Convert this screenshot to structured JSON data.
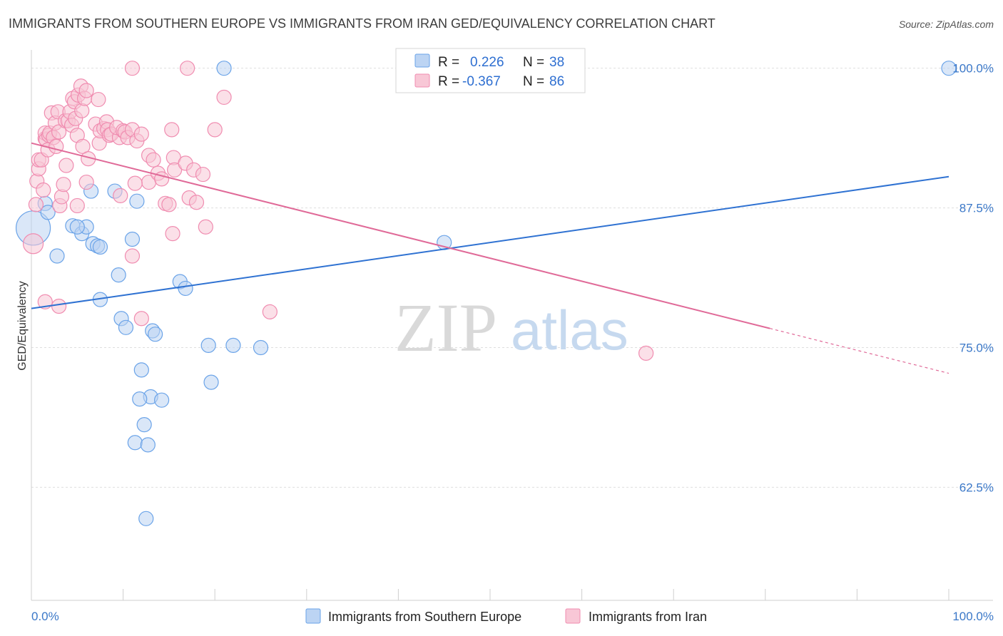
{
  "chart_data": {
    "type": "scatter",
    "title": "IMMIGRANTS FROM SOUTHERN EUROPE VS IMMIGRANTS FROM IRAN GED/EQUIVALENCY CORRELATION CHART",
    "source": "Source: ZipAtlas.com",
    "xlabel": "",
    "ylabel": "GED/Equivalency",
    "xlim": [
      0,
      100
    ],
    "ylim": [
      52,
      101
    ],
    "x_tick_labels": [
      {
        "value": 0,
        "label": "0.0%"
      },
      {
        "value": 100,
        "label": "100.0%"
      }
    ],
    "y_ticks": [
      {
        "value": 100,
        "label": "100.0%"
      },
      {
        "value": 87.5,
        "label": "87.5%"
      },
      {
        "value": 75,
        "label": "75.0%"
      },
      {
        "value": 62.5,
        "label": "62.5%"
      }
    ],
    "watermark": {
      "zip": "ZIP",
      "atlas": "atlas"
    },
    "stats_box": {
      "r_label": "R =",
      "n_label": "N =",
      "rows": [
        {
          "series": "Immigrants from Southern Europe",
          "r": "0.226",
          "n": "38"
        },
        {
          "series": "Immigrants from Iran",
          "r": "-0.367",
          "n": "86"
        }
      ]
    },
    "series": [
      {
        "name": "Immigrants from Southern Europe",
        "color": "#6aa3e8",
        "fill": "#bcd4f3",
        "trend": {
          "x0": 0,
          "y0": 78.5,
          "x1": 100,
          "y1": 90.3,
          "solid_until": 100
        },
        "points": [
          [
            0.2,
            85.7,
            24
          ],
          [
            1.5,
            87.9,
            10
          ],
          [
            1.8,
            87.1,
            10
          ],
          [
            4.5,
            85.9,
            10
          ],
          [
            5.5,
            85.2,
            10
          ],
          [
            6.0,
            85.8,
            10
          ],
          [
            2.8,
            83.2,
            10
          ],
          [
            5.0,
            85.8,
            10
          ],
          [
            6.7,
            84.3,
            10
          ],
          [
            7.2,
            84.1,
            10
          ],
          [
            7.5,
            84.0,
            10
          ],
          [
            6.5,
            89.0,
            10
          ],
          [
            9.1,
            89.0,
            10
          ],
          [
            11.5,
            88.1,
            10
          ],
          [
            11.0,
            84.7,
            10
          ],
          [
            7.5,
            79.3,
            10
          ],
          [
            9.5,
            81.5,
            10
          ],
          [
            9.8,
            77.6,
            10
          ],
          [
            10.3,
            76.8,
            10
          ],
          [
            13.2,
            76.5,
            10
          ],
          [
            13.5,
            76.2,
            10
          ],
          [
            16.2,
            80.9,
            10
          ],
          [
            16.8,
            80.3,
            10
          ],
          [
            19.3,
            75.2,
            10
          ],
          [
            22.0,
            75.2,
            10
          ],
          [
            25.0,
            75.0,
            10
          ],
          [
            12.0,
            73.0,
            10
          ],
          [
            19.6,
            71.9,
            10
          ],
          [
            13.0,
            70.6,
            10
          ],
          [
            11.8,
            70.4,
            10
          ],
          [
            14.2,
            70.3,
            10
          ],
          [
            12.3,
            68.1,
            10
          ],
          [
            11.3,
            66.5,
            10
          ],
          [
            12.7,
            66.3,
            10
          ],
          [
            12.5,
            59.7,
            10
          ],
          [
            21.0,
            100.0,
            10
          ],
          [
            45.0,
            84.4,
            10
          ],
          [
            100.0,
            100.0,
            10
          ]
        ]
      },
      {
        "name": "Immigrants from Iran",
        "color": "#f08cb0",
        "fill": "#f8c7d6",
        "trend": {
          "x0": 0,
          "y0": 93.3,
          "x1": 100,
          "y1": 72.7,
          "solid_until": 80.5
        },
        "points": [
          [
            0.2,
            84.3,
            14
          ],
          [
            0.5,
            87.8,
            10
          ],
          [
            0.6,
            89.9,
            10
          ],
          [
            0.8,
            91.0,
            10
          ],
          [
            0.8,
            91.8,
            10
          ],
          [
            1.1,
            91.8,
            10
          ],
          [
            1.3,
            89.1,
            10
          ],
          [
            1.5,
            93.7,
            10
          ],
          [
            1.5,
            94.2,
            10
          ],
          [
            1.6,
            93.6,
            10
          ],
          [
            1.8,
            92.7,
            10
          ],
          [
            1.9,
            94.0,
            10
          ],
          [
            2.0,
            94.2,
            10
          ],
          [
            2.2,
            96.0,
            10
          ],
          [
            2.4,
            93.8,
            10
          ],
          [
            2.6,
            95.1,
            10
          ],
          [
            2.7,
            93.0,
            10
          ],
          [
            2.9,
            96.1,
            10
          ],
          [
            3.0,
            94.3,
            10
          ],
          [
            3.1,
            87.7,
            10
          ],
          [
            3.3,
            88.5,
            10
          ],
          [
            3.5,
            89.6,
            10
          ],
          [
            3.7,
            95.3,
            10
          ],
          [
            3.8,
            91.3,
            10
          ],
          [
            4.0,
            95.3,
            10
          ],
          [
            4.2,
            96.1,
            10
          ],
          [
            4.4,
            94.9,
            10
          ],
          [
            4.5,
            97.3,
            10
          ],
          [
            4.7,
            97.0,
            10
          ],
          [
            4.8,
            95.5,
            10
          ],
          [
            5.0,
            94.0,
            10
          ],
          [
            5.1,
            97.6,
            10
          ],
          [
            5.4,
            98.4,
            10
          ],
          [
            5.5,
            96.2,
            10
          ],
          [
            5.6,
            93.0,
            10
          ],
          [
            5.8,
            97.3,
            10
          ],
          [
            6.0,
            98.0,
            10
          ],
          [
            6.2,
            91.9,
            10
          ],
          [
            6.0,
            89.8,
            10
          ],
          [
            7.0,
            95.0,
            10
          ],
          [
            7.3,
            97.2,
            10
          ],
          [
            7.4,
            93.3,
            10
          ],
          [
            7.5,
            94.4,
            10
          ],
          [
            7.9,
            94.6,
            10
          ],
          [
            8.2,
            95.2,
            10
          ],
          [
            8.3,
            94.5,
            10
          ],
          [
            8.5,
            94.0,
            10
          ],
          [
            8.7,
            94.1,
            10
          ],
          [
            9.6,
            93.8,
            10
          ],
          [
            9.3,
            94.7,
            10
          ],
          [
            9.7,
            88.6,
            10
          ],
          [
            10.0,
            94.4,
            10
          ],
          [
            10.2,
            94.3,
            10
          ],
          [
            10.5,
            93.8,
            10
          ],
          [
            11.0,
            94.5,
            10
          ],
          [
            11.5,
            93.5,
            10
          ],
          [
            12.0,
            94.1,
            10
          ],
          [
            12.8,
            92.2,
            10
          ],
          [
            13.3,
            91.8,
            10
          ],
          [
            12.8,
            89.8,
            10
          ],
          [
            13.8,
            90.6,
            10
          ],
          [
            14.2,
            90.1,
            10
          ],
          [
            14.6,
            87.9,
            10
          ],
          [
            15.0,
            87.8,
            10
          ],
          [
            15.5,
            92.0,
            10
          ],
          [
            15.6,
            90.9,
            10
          ],
          [
            16.8,
            91.5,
            10
          ],
          [
            17.2,
            88.4,
            10
          ],
          [
            17.7,
            90.9,
            10
          ],
          [
            19.0,
            85.8,
            10
          ],
          [
            20.0,
            94.5,
            10
          ],
          [
            21.0,
            97.4,
            10
          ],
          [
            15.3,
            94.5,
            10
          ],
          [
            15.4,
            85.2,
            10
          ],
          [
            18.0,
            88.0,
            10
          ],
          [
            18.7,
            90.5,
            10
          ],
          [
            11.0,
            83.2,
            10
          ],
          [
            11.3,
            89.7,
            10
          ],
          [
            12.0,
            77.6,
            10
          ],
          [
            3.0,
            78.7,
            10
          ],
          [
            1.5,
            79.1,
            10
          ],
          [
            26.0,
            78.2,
            10
          ],
          [
            11.0,
            100.0,
            10
          ],
          [
            17.0,
            100.0,
            10
          ],
          [
            67.0,
            74.5,
            10
          ],
          [
            5.0,
            87.7,
            10
          ]
        ]
      }
    ]
  }
}
